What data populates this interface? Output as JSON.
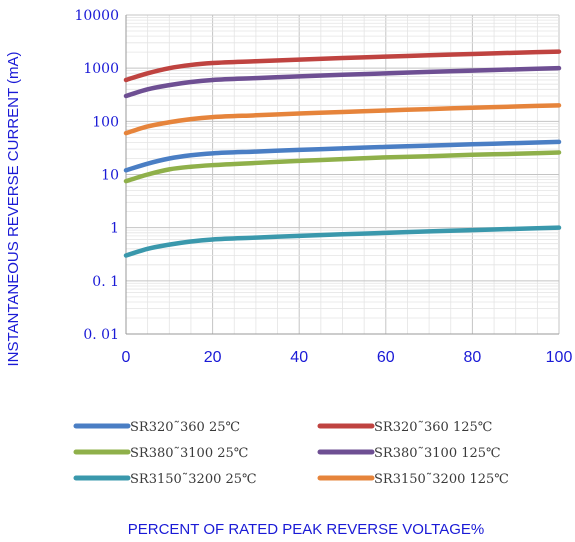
{
  "chart_data": {
    "type": "line",
    "xlabel": "PERCENT OF RATED PEAK REVERSE VOLTAGE%",
    "ylabel": "INSTANTANEOUS REVERSE CURRENT (mA)",
    "xlim": [
      0,
      100
    ],
    "ylim": [
      0.01,
      10000
    ],
    "yscale": "log",
    "x_ticks": [
      0,
      20,
      40,
      60,
      80,
      100
    ],
    "x_tick_labels": [
      "0",
      "20",
      "40",
      "60",
      "80",
      "100"
    ],
    "y_ticks": [
      0.01,
      0.1,
      1,
      10,
      100,
      1000,
      10000
    ],
    "y_tick_labels": [
      "0. 01",
      "0. 1",
      "1",
      "10",
      "100",
      "1000",
      "10000"
    ],
    "grid": true,
    "legend_position": "below plot, two columns",
    "x": [
      0,
      5,
      10,
      15,
      20,
      30,
      40,
      50,
      60,
      70,
      80,
      90,
      100
    ],
    "series": [
      {
        "name": "SR320˜360  25℃",
        "color": "#4a7ec4",
        "values": [
          12,
          16,
          20,
          23,
          25,
          27,
          29,
          31,
          33,
          35,
          37,
          39,
          41
        ]
      },
      {
        "name": "SR320˜360  125℃",
        "color": "#bf4340",
        "values": [
          600,
          800,
          1000,
          1150,
          1250,
          1350,
          1450,
          1550,
          1650,
          1750,
          1850,
          1950,
          2050
        ]
      },
      {
        "name": "SR380˜3100  25℃",
        "color": "#8fb04a",
        "values": [
          7.5,
          10,
          12.5,
          14,
          15,
          16.5,
          18,
          19.5,
          21,
          22,
          23.5,
          24.5,
          26
        ]
      },
      {
        "name": "SR380˜3100  125℃",
        "color": "#6e4f93",
        "values": [
          300,
          400,
          480,
          550,
          600,
          650,
          700,
          750,
          800,
          850,
          900,
          950,
          1000
        ]
      },
      {
        "name": "SR3150˜3200  25℃",
        "color": "#3a98ac",
        "values": [
          0.3,
          0.4,
          0.48,
          0.55,
          0.6,
          0.65,
          0.7,
          0.75,
          0.8,
          0.85,
          0.9,
          0.95,
          1.0
        ]
      },
      {
        "name": "SR3150˜3200  125℃",
        "color": "#e6843b",
        "values": [
          60,
          80,
          96,
          110,
          120,
          130,
          140,
          150,
          160,
          170,
          180,
          190,
          200
        ]
      }
    ]
  }
}
